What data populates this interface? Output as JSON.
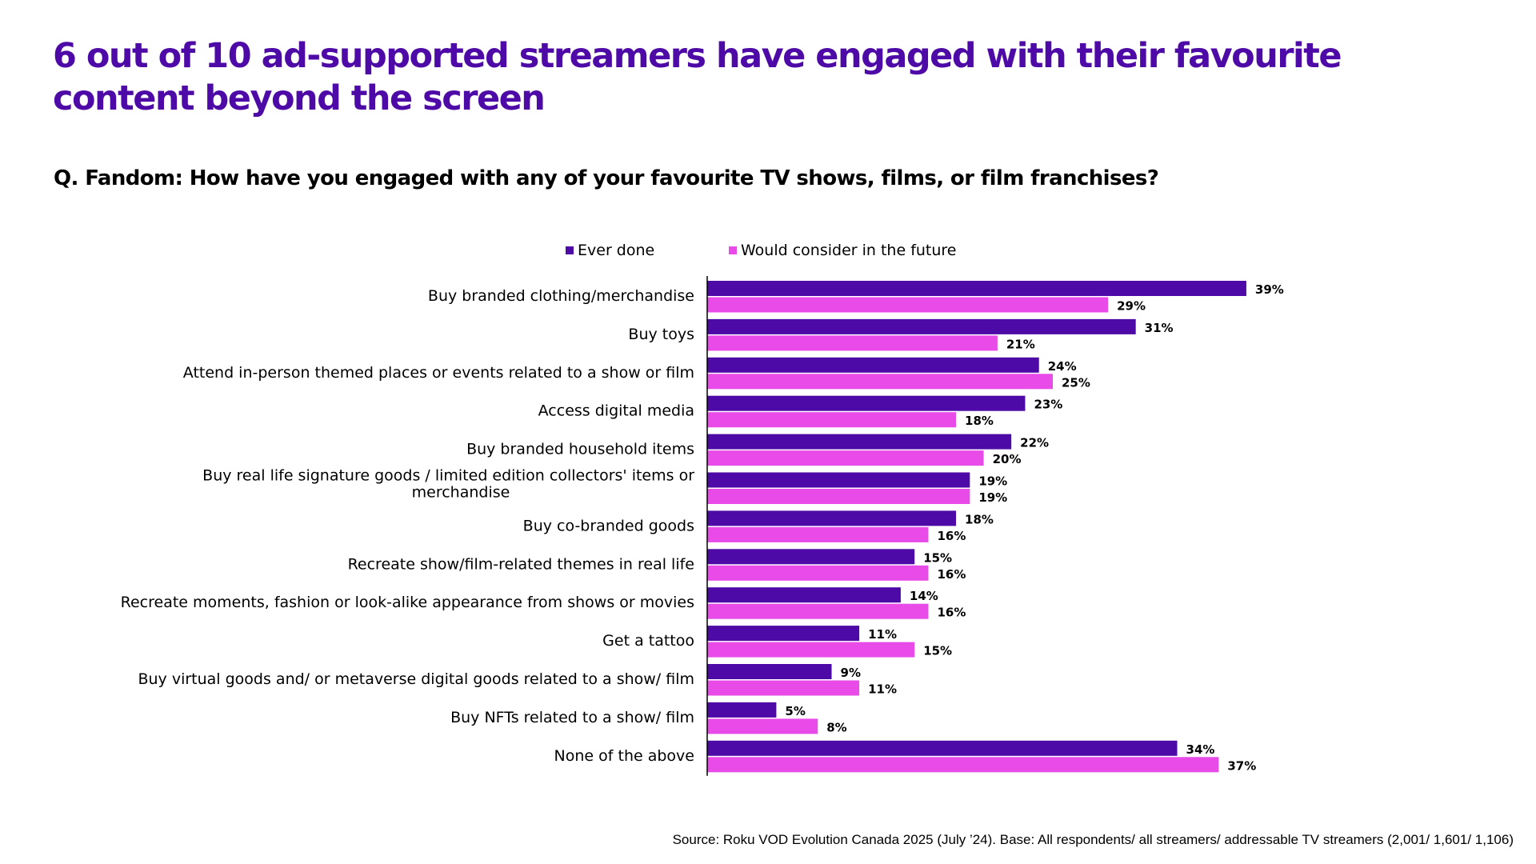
{
  "title": "6 out of 10 ad-supported streamers have engaged with their favourite content beyond the screen",
  "subtitle": "Q. Fandom: How have you engaged with any of your favourite TV shows, films, or film franchises?",
  "source": "Source: Roku VOD Evolution Canada 2025 (July ’24). Base: All respondents/ all streamers/ addressable TV streamers (2,001/ 1,601/ 1,106)",
  "colors": {
    "title": "#4e0aa6",
    "ever_done": "#4e0aa6",
    "would_consider": "#e84be8"
  },
  "chart_data": {
    "type": "bar",
    "orientation": "horizontal",
    "xlim": [
      0,
      40
    ],
    "grid": false,
    "legend_placement": "top",
    "value_format": "percent",
    "categories": [
      "Buy branded clothing/merchandise",
      "Buy toys",
      "Attend in-person themed places or events related to a show or film",
      "Access digital media",
      "Buy branded household items",
      "Buy real life signature goods / limited edition collectors' items or merchandise",
      "Buy co-branded goods",
      "Recreate show/film-related themes in real life",
      "Recreate moments, fashion or look-alike appearance from shows or movies",
      "Get a tattoo",
      "Buy virtual goods and/ or metaverse digital goods related to a show/ film",
      "Buy NFTs related to a show/ film",
      "None of the above"
    ],
    "series": [
      {
        "name": "Ever done",
        "color": "#4e0aa6",
        "values": [
          39,
          31,
          24,
          23,
          22,
          19,
          18,
          15,
          14,
          11,
          9,
          5,
          34
        ]
      },
      {
        "name": "Would consider in the future",
        "color": "#e84be8",
        "values": [
          29,
          21,
          25,
          18,
          20,
          19,
          16,
          16,
          16,
          15,
          11,
          8,
          37
        ]
      }
    ]
  }
}
